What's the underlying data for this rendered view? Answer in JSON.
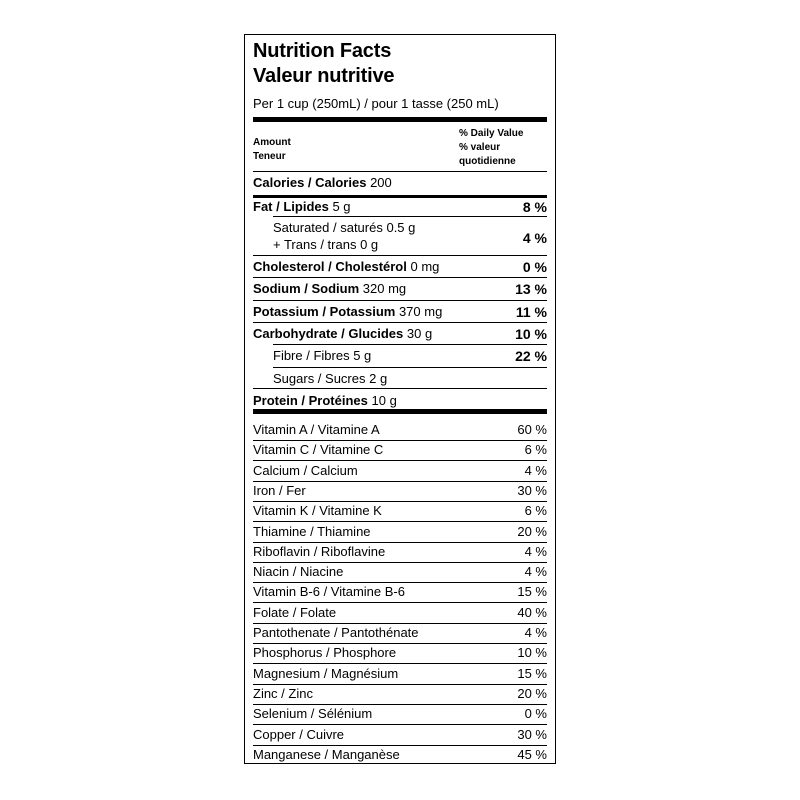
{
  "title_en": "Nutrition Facts",
  "title_fr": "Valeur nutritive",
  "serving": "Per 1 cup (250mL) / pour 1 tasse (250 mL)",
  "header": {
    "amount_en": "Amount",
    "amount_fr": "Teneur",
    "dv_line1": "% Daily Value",
    "dv_line2": "% valeur",
    "dv_line3": "quotidienne"
  },
  "calories": {
    "label": "Calories / Calories",
    "value": "200"
  },
  "nutrients": {
    "fat": {
      "label": "Fat / Lipides",
      "amount": "5 g",
      "dv": "8 %"
    },
    "saturated": {
      "label": "Saturated / saturés",
      "amount": "0.5 g"
    },
    "trans": {
      "label": "+ Trans / trans",
      "amount": "0 g"
    },
    "sat_trans_dv": "4 %",
    "cholesterol": {
      "label": "Cholesterol / Cholestérol",
      "amount": "0 mg",
      "dv": "0 %"
    },
    "sodium": {
      "label": "Sodium / Sodium",
      "amount": "320 mg",
      "dv": "13 %"
    },
    "potassium": {
      "label": "Potassium / Potassium",
      "amount": "370 mg",
      "dv": "11 %"
    },
    "carbohydrate": {
      "label": "Carbohydrate / Glucides",
      "amount": "30 g",
      "dv": "10 %"
    },
    "fibre": {
      "label": "Fibre / Fibres",
      "amount": "5 g",
      "dv": "22 %"
    },
    "sugars": {
      "label": "Sugars / Sucres",
      "amount": "2 g"
    },
    "protein": {
      "label": "Protein / Protéines",
      "amount": "10 g"
    }
  },
  "vitamins": [
    {
      "label": "Vitamin A / Vitamine A",
      "dv": "60 %"
    },
    {
      "label": "Vitamin C / Vitamine C",
      "dv": "6 %"
    },
    {
      "label": "Calcium / Calcium",
      "dv": "4 %"
    },
    {
      "label": "Iron / Fer",
      "dv": "30 %"
    },
    {
      "label": "Vitamin K / Vitamine K",
      "dv": "6 %"
    },
    {
      "label": "Thiamine / Thiamine",
      "dv": "20 %"
    },
    {
      "label": "Riboflavin / Riboflavine",
      "dv": "4 %"
    },
    {
      "label": "Niacin / Niacine",
      "dv": "4 %"
    },
    {
      "label": "Vitamin B-6 / Vitamine B-6",
      "dv": "15 %"
    },
    {
      "label": "Folate / Folate",
      "dv": "40 %"
    },
    {
      "label": "Pantothenate / Pantothénate",
      "dv": "4 %"
    },
    {
      "label": "Phosphorus / Phosphore",
      "dv": "10 %"
    },
    {
      "label": "Magnesium / Magnésium",
      "dv": "15 %"
    },
    {
      "label": "Zinc / Zinc",
      "dv": "20 %"
    },
    {
      "label": "Selenium / Sélénium",
      "dv": "0 %"
    },
    {
      "label": "Copper / Cuivre",
      "dv": "30 %"
    },
    {
      "label": "Manganese / Manganèse",
      "dv": "45 %"
    }
  ]
}
